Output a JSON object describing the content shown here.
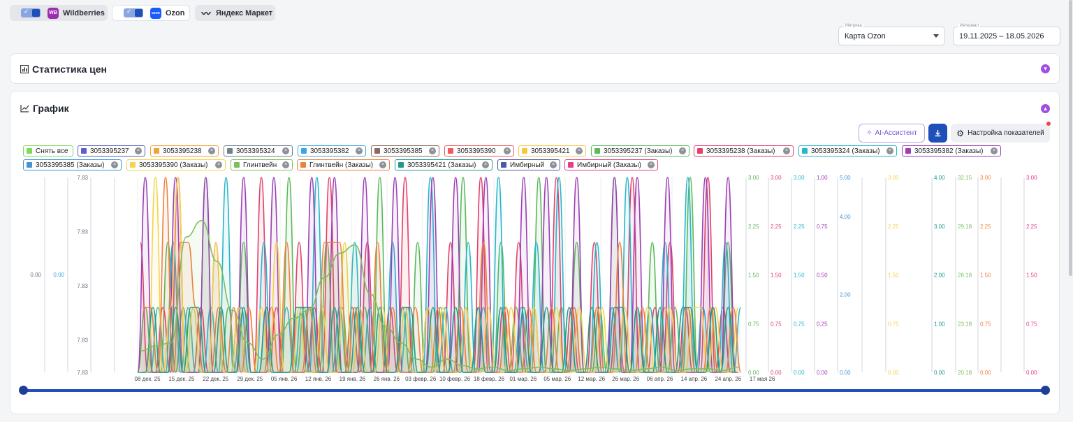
{
  "marketplaces": [
    {
      "label": "Wildberries",
      "logo_text": "WB",
      "logo_color": "#9b2fb0",
      "enabled": true
    },
    {
      "label": "Ozon",
      "logo_text": "ozon",
      "logo_color": "#1a5cff",
      "enabled": true
    },
    {
      "label": "Яндекс Маркет",
      "logo_text": "",
      "logo_color": "#f5c518",
      "enabled": false
    }
  ],
  "filters": {
    "metric_label": "Метрика",
    "metric_value": "Карта Ozon",
    "interval_label": "Интервал",
    "interval_value": "19.11.2025 – 18.05.2026"
  },
  "stats_panel": {
    "title": "Статистика цен",
    "icon": "bar-chart-icon"
  },
  "chart_panel": {
    "title": "График",
    "icon": "line-chart-icon"
  },
  "toolbar": {
    "ai_label": "AI-Ассистент",
    "download_icon": "download-icon",
    "settings_label": "Настройка показателей"
  },
  "legend": [
    {
      "label": "Снять все",
      "color": "#7ed957",
      "removable": false
    },
    {
      "label": "3053395237",
      "color": "#5b5fc7",
      "removable": true
    },
    {
      "label": "3053395238",
      "color": "#f5a13a",
      "removable": true
    },
    {
      "label": "3053395324",
      "color": "#6e7f8d",
      "removable": true
    },
    {
      "label": "3053395382",
      "color": "#3ba7e0",
      "removable": true
    },
    {
      "label": "3053395385",
      "color": "#8b6a5b",
      "removable": true
    },
    {
      "label": "3053395390",
      "color": "#ef5b5b",
      "removable": true
    },
    {
      "label": "3053395421",
      "color": "#f7c744",
      "removable": true
    },
    {
      "label": "3053395237 (Заказы)",
      "color": "#5cb85c",
      "removable": true
    },
    {
      "label": "3053395238 (Заказы)",
      "color": "#e0416b",
      "removable": true
    },
    {
      "label": "3053395324 (Заказы)",
      "color": "#29b6c8",
      "removable": true
    },
    {
      "label": "3053395382 (Заказы)",
      "color": "#9b3fb5",
      "removable": true
    },
    {
      "label": "3053395385 (Заказы)",
      "color": "#3f95d6",
      "removable": true
    },
    {
      "label": "3053395390 (Заказы)",
      "color": "#f5d34a",
      "removable": true
    },
    {
      "label": "Глинтвейн",
      "color": "#7cbf5a",
      "removable": true
    },
    {
      "label": "Глинтвейн (Заказы)",
      "color": "#f07f3c",
      "removable": true
    },
    {
      "label": "3053395421 (Заказы)",
      "color": "#1f9a8a",
      "removable": true
    },
    {
      "label": "Имбирный",
      "color": "#4a5aa8",
      "removable": true
    },
    {
      "label": "Имбирный (Заказы)",
      "color": "#e63e8c",
      "removable": true
    }
  ],
  "chart_data": {
    "type": "line",
    "x_tick_labels": [
      "08 дек. 25",
      "15 дек. 25",
      "22 дек. 25",
      "29 дек. 25",
      "05 янв. 26",
      "12 янв. 26",
      "19 янв. 26",
      "26 янв. 26",
      "03 февр. 26",
      "10 февр. 26",
      "18 февр. 26",
      "01 мар. 26",
      "05 мар. 26",
      "12 мар. 26",
      "26 мар. 26",
      "06 апр. 26",
      "14 апр. 26",
      "24 апр. 26",
      "17 мая 26"
    ],
    "left_axes": [
      {
        "ticks": [
          "0.00"
        ],
        "color": "#6b7280"
      },
      {
        "ticks": [
          "0.00"
        ],
        "color": "#3ba7e0"
      },
      {
        "ticks": [
          "7.83",
          "7.83",
          "7.83",
          "7.83",
          "7.83"
        ],
        "color": "#6b7280"
      }
    ],
    "right_axes": [
      {
        "ticks": [
          "3.00",
          "2.25",
          "1.50",
          "0.75",
          "0.00"
        ],
        "color": "#5cb85c"
      },
      {
        "ticks": [
          "3.00",
          "2.25",
          "1.50",
          "0.75",
          "0.00"
        ],
        "color": "#e0416b"
      },
      {
        "ticks": [
          "3.00",
          "2.25",
          "1.50",
          "0.75",
          "0.00"
        ],
        "color": "#29b6c8"
      },
      {
        "ticks": [
          "1.00",
          "0.75",
          "0.50",
          "0.25",
          "0.00"
        ],
        "color": "#9b3fb5"
      },
      {
        "ticks": [
          "5.00",
          "4.00",
          "2.00",
          "0.00"
        ],
        "color": "#3f95d6"
      },
      {
        "ticks": [
          "3.00",
          "2.25",
          "1.50",
          "0.75",
          "0.00"
        ],
        "color": "#f5d34a"
      },
      {
        "ticks": [
          "4.00",
          "3.00",
          "2.00",
          "1.00",
          "0.00"
        ],
        "color": "#1f9a8a"
      },
      {
        "ticks": [
          "32.15",
          "29.18",
          "26.18",
          "23.18",
          "20.18"
        ],
        "color": "#7cbf5a"
      },
      {
        "ticks": [
          "3.00",
          "2.25",
          "1.50",
          "0.75",
          "0.00"
        ],
        "color": "#f07f3c"
      },
      {
        "ticks": [
          "3.00",
          "2.25",
          "1.50",
          "0.75",
          "0.00"
        ],
        "color": "#e63e8c"
      }
    ],
    "ylim": [
      0,
      3
    ],
    "series": [
      {
        "name": "3053395237 (Заказы)",
        "color": "#5cb85c",
        "values": [
          0,
          1,
          0,
          0,
          2,
          0,
          1,
          0,
          0,
          3,
          0,
          0,
          1,
          0,
          2,
          0,
          0,
          1,
          0,
          0,
          3,
          0,
          1,
          0,
          0,
          2,
          0,
          1,
          0,
          0,
          1,
          0,
          3,
          0,
          0,
          1,
          0,
          2,
          0,
          0,
          1,
          0,
          0,
          3,
          0,
          1,
          0,
          0,
          2,
          0,
          1,
          0,
          0,
          3,
          0,
          0,
          1,
          0,
          2,
          0,
          0,
          1,
          0,
          3,
          0,
          0,
          1,
          0,
          2,
          0,
          0,
          1,
          0,
          3,
          0,
          0,
          1,
          0,
          2,
          0
        ]
      },
      {
        "name": "3053395238 (Заказы)",
        "color": "#e0416b",
        "values": [
          2,
          0,
          0,
          1,
          0,
          3,
          0,
          0,
          1,
          0,
          2,
          0,
          0,
          1,
          0,
          0,
          3,
          0,
          1,
          0,
          0,
          2,
          0,
          1,
          0,
          3,
          0,
          0,
          1,
          0,
          2,
          0,
          0,
          1,
          0,
          3,
          0,
          0,
          1,
          0,
          0,
          2,
          0,
          1,
          0,
          3,
          0,
          0,
          1,
          0,
          2,
          0,
          1,
          0,
          0,
          3,
          0,
          1,
          0,
          0,
          2,
          0,
          0,
          1,
          0,
          3,
          0,
          0,
          1,
          0,
          2,
          0,
          1,
          0,
          0,
          3,
          0,
          1,
          0,
          0
        ]
      },
      {
        "name": "3053395324 (Заказы)",
        "color": "#29b6c8",
        "values": [
          0,
          0,
          1,
          0,
          2,
          0,
          1,
          0,
          0,
          1,
          0,
          3,
          0,
          1,
          0,
          0,
          2,
          0,
          0,
          1,
          0,
          1,
          0,
          3,
          0,
          0,
          1,
          0,
          2,
          0,
          1,
          0,
          0,
          2,
          0,
          1,
          0,
          0,
          3,
          0,
          1,
          0,
          0,
          2,
          0,
          1,
          0,
          3,
          0,
          0,
          1,
          0,
          2,
          0,
          0,
          3,
          0,
          1,
          0,
          0,
          2,
          0,
          1,
          0,
          3,
          0,
          0,
          1,
          0,
          2,
          0,
          0,
          3,
          0,
          1,
          0,
          0,
          2,
          0,
          1
        ]
      },
      {
        "name": "3053395382 (Заказы)",
        "color": "#9b3fb5",
        "values": [
          0,
          1,
          0,
          0,
          0,
          1,
          0,
          0,
          0,
          1,
          0,
          0,
          0,
          0,
          1,
          0,
          0,
          0,
          1,
          0,
          0,
          0,
          0,
          1,
          0,
          0,
          1,
          0,
          0,
          0,
          1,
          0,
          0,
          0,
          1,
          0,
          0,
          0,
          0,
          1,
          0,
          0,
          1,
          0,
          0,
          0,
          1,
          0,
          0,
          0,
          0,
          1,
          0,
          0,
          1,
          0,
          0,
          0,
          1,
          0,
          0,
          0,
          0,
          1,
          0,
          0,
          1,
          0,
          0,
          0,
          1,
          0,
          0,
          0,
          0,
          1,
          0,
          0,
          1,
          0
        ]
      },
      {
        "name": "3053395390 (Заказы)",
        "color": "#f5d34a",
        "values": [
          0,
          0,
          3,
          0,
          1,
          3,
          0,
          1,
          0,
          0,
          2,
          0,
          0,
          1,
          0,
          0,
          1,
          0,
          2,
          0,
          0,
          1,
          0,
          0,
          1,
          0,
          0,
          2,
          0,
          1,
          0,
          0,
          1,
          0,
          0,
          1,
          0,
          0,
          1,
          0,
          1,
          0,
          0,
          1,
          0,
          0,
          1,
          0,
          0,
          1,
          0,
          0,
          1,
          0,
          0,
          1,
          0,
          0,
          1,
          0,
          0,
          1,
          0,
          0,
          1,
          0,
          0,
          1,
          0,
          0,
          1,
          0,
          0,
          1,
          1,
          0,
          1,
          0,
          0,
          1
        ]
      },
      {
        "name": "Глинтвейн (Заказы)",
        "color": "#f07f3c",
        "values": [
          1,
          1,
          0,
          3,
          0,
          2,
          2,
          1,
          0,
          0,
          1,
          0,
          1,
          0,
          1,
          0,
          0,
          1,
          0,
          2,
          0,
          0,
          1,
          0,
          2,
          2,
          2,
          0,
          1,
          0,
          0,
          2,
          0,
          1,
          0,
          0,
          1,
          0,
          0,
          1,
          0,
          0,
          1,
          0,
          0,
          2,
          0,
          0,
          1,
          0,
          0,
          1,
          0,
          0,
          1,
          0,
          0,
          1,
          0,
          0,
          1,
          0,
          0,
          2,
          0,
          0,
          1,
          0,
          0,
          1,
          0,
          0,
          1,
          0,
          0,
          1,
          0,
          0,
          1,
          0
        ]
      },
      {
        "name": "3053395421 (Заказы)",
        "color": "#1f9a8a",
        "values": [
          0,
          0,
          1,
          0,
          0,
          1,
          0,
          1,
          1,
          0,
          0,
          1,
          0,
          0,
          1,
          0,
          0,
          1,
          0,
          0,
          0,
          1,
          1,
          1,
          0,
          0,
          1,
          0,
          0,
          1,
          0,
          0,
          1,
          0,
          0,
          1,
          1,
          0,
          0,
          1,
          0,
          0,
          1,
          0,
          0,
          1,
          0,
          0,
          1,
          0,
          0,
          1,
          0,
          0,
          1,
          0,
          0,
          1,
          0,
          0,
          1,
          0,
          0,
          1,
          1,
          0,
          1,
          0,
          0,
          1,
          0,
          0,
          1,
          1,
          0,
          0,
          1,
          0,
          1,
          0
        ]
      },
      {
        "name": "Глинтвейн",
        "color": "#7cbf5a",
        "values": [
          21.5,
          21.8,
          22.0,
          28.5,
          29.5,
          27.0,
          24.0,
          22.0,
          21.0,
          22.5,
          23.5,
          24.0,
          26.0,
          27.5,
          28.0,
          25.0,
          23.0,
          22.0,
          21.0,
          20.5,
          21.0,
          20.6,
          20.4,
          20.5,
          20.3,
          20.4,
          20.5,
          20.4,
          20.3,
          20.4,
          20.5,
          20.4,
          20.3,
          20.4,
          20.5,
          20.3,
          20.4,
          20.4,
          20.3,
          20.5
        ]
      }
    ]
  },
  "slider": {
    "start": 0,
    "end": 1
  }
}
